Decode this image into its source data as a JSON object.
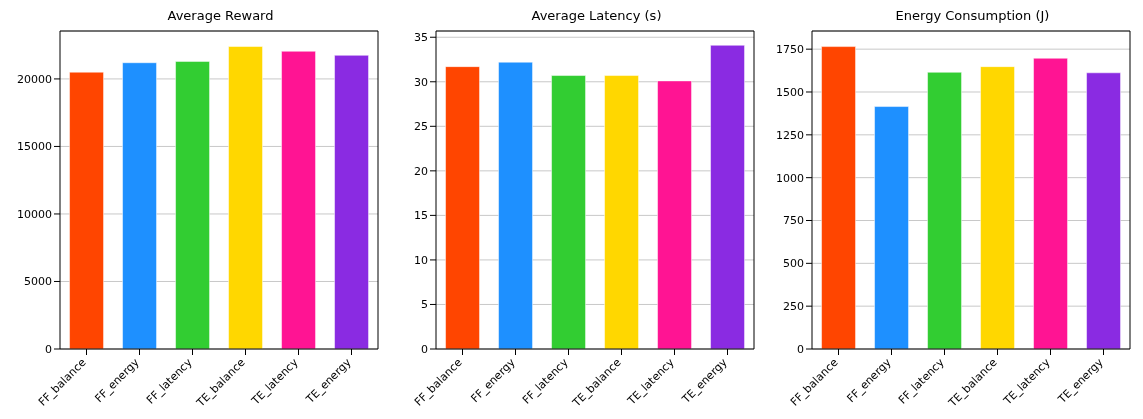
{
  "chart_data": [
    {
      "type": "bar",
      "title": "Average Reward",
      "categories": [
        "FF_balance",
        "FF_energy",
        "FF_latency",
        "TE_balance",
        "TE_latency",
        "TE_energy"
      ],
      "values": [
        20500,
        21200,
        21300,
        22400,
        22050,
        21750
      ],
      "colors": [
        "#ff4500",
        "#1e90ff",
        "#32cd32",
        "#ffd700",
        "#ff1493",
        "#8a2be2"
      ],
      "ylim": [
        0,
        23550
      ],
      "yticks": [
        0,
        5000,
        10000,
        15000,
        20000
      ],
      "grid": "y"
    },
    {
      "type": "bar",
      "title": "Average Latency (s)",
      "categories": [
        "FF_balance",
        "FF_energy",
        "FF_latency",
        "TE_balance",
        "TE_latency",
        "TE_energy"
      ],
      "values": [
        31.7,
        32.2,
        30.7,
        30.7,
        30.1,
        34.1
      ],
      "colors": [
        "#ff4500",
        "#1e90ff",
        "#32cd32",
        "#ffd700",
        "#ff1493",
        "#8a2be2"
      ],
      "ylim": [
        0,
        35.7
      ],
      "yticks": [
        0,
        5,
        10,
        15,
        20,
        25,
        30,
        35
      ],
      "grid": "y"
    },
    {
      "type": "bar",
      "title": "Energy Consumption (J)",
      "categories": [
        "FF_balance",
        "FF_energy",
        "FF_latency",
        "TE_balance",
        "TE_latency",
        "TE_energy"
      ],
      "values": [
        1765,
        1415,
        1615,
        1648,
        1697,
        1612
      ],
      "colors": [
        "#ff4500",
        "#1e90ff",
        "#32cd32",
        "#ffd700",
        "#ff1493",
        "#8a2be2"
      ],
      "ylim": [
        0,
        1856
      ],
      "yticks": [
        0,
        250,
        500,
        750,
        1000,
        1250,
        1500,
        1750
      ],
      "grid": "y"
    }
  ]
}
